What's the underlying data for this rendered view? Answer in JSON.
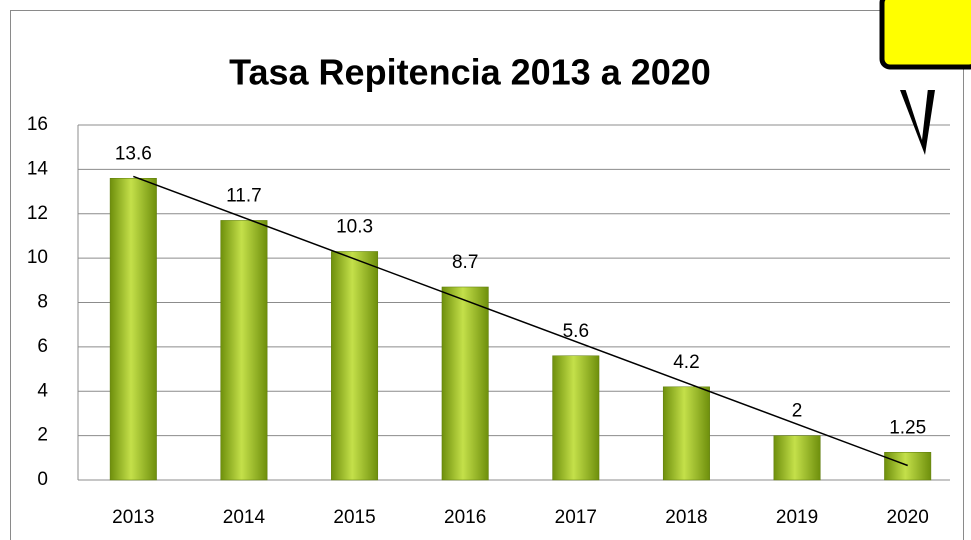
{
  "chart_data": {
    "type": "bar",
    "title": "Tasa Repitencia 2013 a 2020",
    "categories": [
      "2013",
      "2014",
      "2015",
      "2016",
      "2017",
      "2018",
      "2019",
      "2020"
    ],
    "values": [
      13.6,
      11.7,
      10.3,
      8.7,
      5.6,
      4.2,
      2,
      1.25
    ],
    "color": "#8db414",
    "ylim": [
      0,
      16
    ],
    "yticks": [
      0,
      2,
      4,
      6,
      8,
      10,
      12,
      14,
      16
    ],
    "grid": true,
    "trendline": true
  }
}
